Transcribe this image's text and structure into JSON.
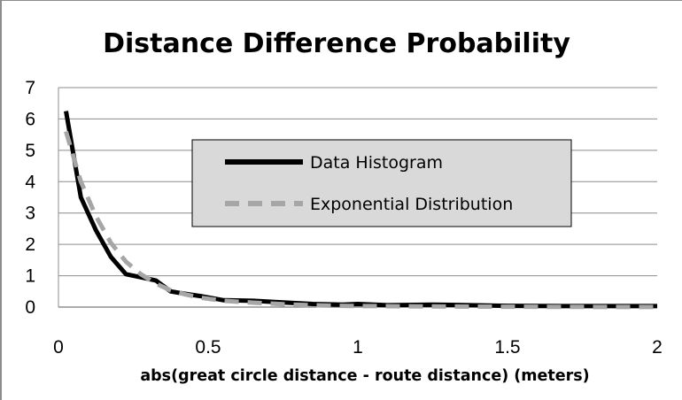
{
  "chart_data": {
    "type": "line",
    "title": "Distance Difference Probability",
    "xlabel": "abs(great circle distance - route distance)  (meters)",
    "ylabel": "",
    "xlim": [
      0,
      2
    ],
    "ylim": [
      0,
      7
    ],
    "x_ticks": [
      "0",
      "0.5",
      "1",
      "1.5",
      "2"
    ],
    "y_ticks": [
      "0",
      "1",
      "2",
      "3",
      "4",
      "5",
      "6",
      "7"
    ],
    "grid": "horizontal",
    "legend_position": "center-right",
    "series": [
      {
        "name": "Data Histogram",
        "color": "#000000",
        "style": "solid",
        "x": [
          0.025,
          0.075,
          0.125,
          0.175,
          0.225,
          0.275,
          0.325,
          0.375,
          0.425,
          0.475,
          0.55,
          0.65,
          0.75,
          0.85,
          0.95,
          1.0,
          1.1,
          1.25,
          1.5,
          1.75,
          2.0
        ],
        "y": [
          6.25,
          3.5,
          2.45,
          1.6,
          1.05,
          0.95,
          0.85,
          0.5,
          0.42,
          0.35,
          0.22,
          0.2,
          0.15,
          0.1,
          0.08,
          0.1,
          0.06,
          0.08,
          0.04,
          0.03,
          0.03
        ]
      },
      {
        "name": "Exponential Distribution",
        "color": "#a6a6a6",
        "style": "dashed",
        "x": [
          0.025,
          0.075,
          0.125,
          0.175,
          0.225,
          0.275,
          0.325,
          0.375,
          0.425,
          0.475,
          0.55,
          0.65,
          0.75,
          0.85,
          0.95,
          1.0,
          1.25,
          1.5,
          1.75,
          2.0
        ],
        "y": [
          5.6,
          4.0,
          2.9,
          2.05,
          1.45,
          1.05,
          0.75,
          0.53,
          0.4,
          0.3,
          0.2,
          0.14,
          0.09,
          0.06,
          0.04,
          0.035,
          0.02,
          0.01,
          0.005,
          0.003
        ]
      }
    ]
  }
}
